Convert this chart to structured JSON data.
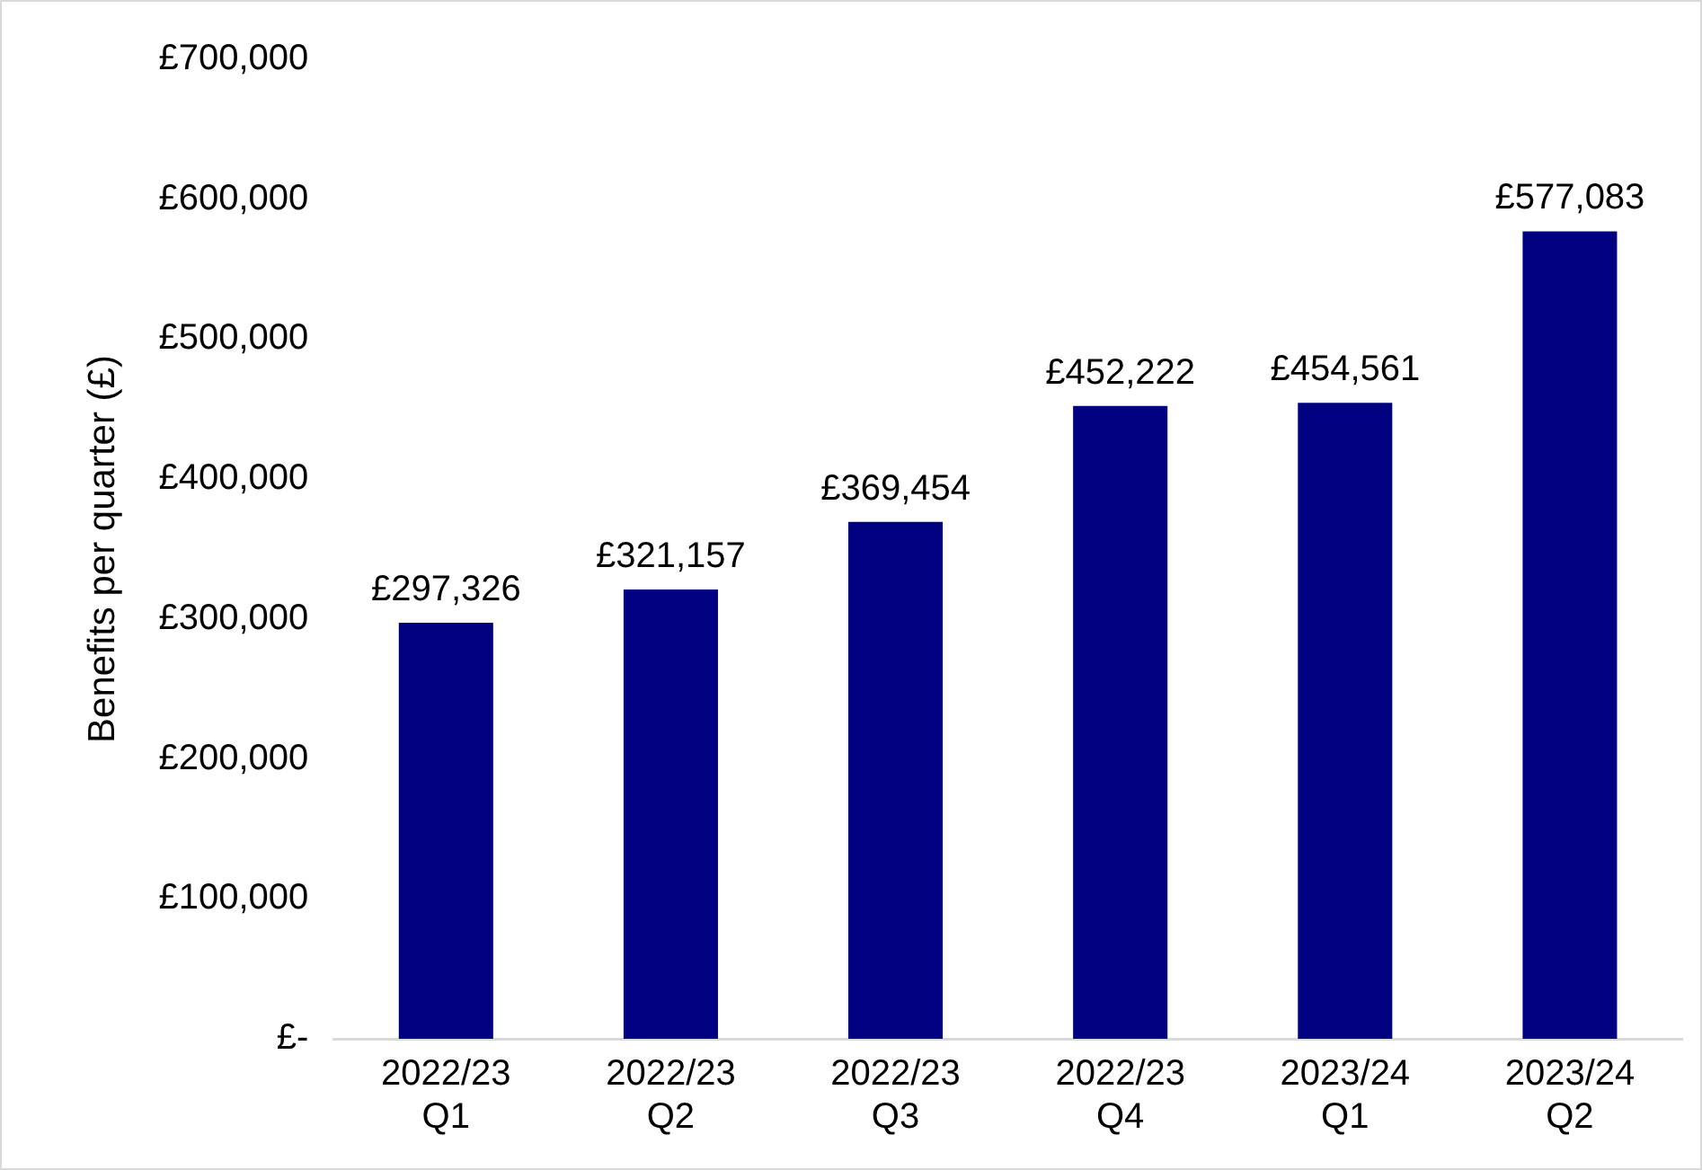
{
  "chart_data": {
    "type": "bar",
    "ylabel": "Benefits per quarter (£)",
    "categories": [
      "2022/23 Q1",
      "2022/23 Q2",
      "2022/23 Q3",
      "2022/23 Q4",
      "2023/24 Q1",
      "2023/24 Q2"
    ],
    "values": [
      297326,
      321157,
      369454,
      452222,
      454561,
      577083
    ],
    "value_labels": [
      "£297,326",
      "£321,157",
      "£369,454",
      "£452,222",
      "£454,561",
      "£577,083"
    ],
    "color": "#000080",
    "ylim": [
      0,
      700000
    ],
    "yticks": [
      {
        "value": 0,
        "label": "£-"
      },
      {
        "value": 100000,
        "label": "£100,000"
      },
      {
        "value": 200000,
        "label": "£200,000"
      },
      {
        "value": 300000,
        "label": "£300,000"
      },
      {
        "value": 400000,
        "label": "£400,000"
      },
      {
        "value": 500000,
        "label": "£500,000"
      },
      {
        "value": 600000,
        "label": "£600,000"
      },
      {
        "value": 700000,
        "label": "£700,000"
      }
    ],
    "grid": false,
    "legend": false
  }
}
